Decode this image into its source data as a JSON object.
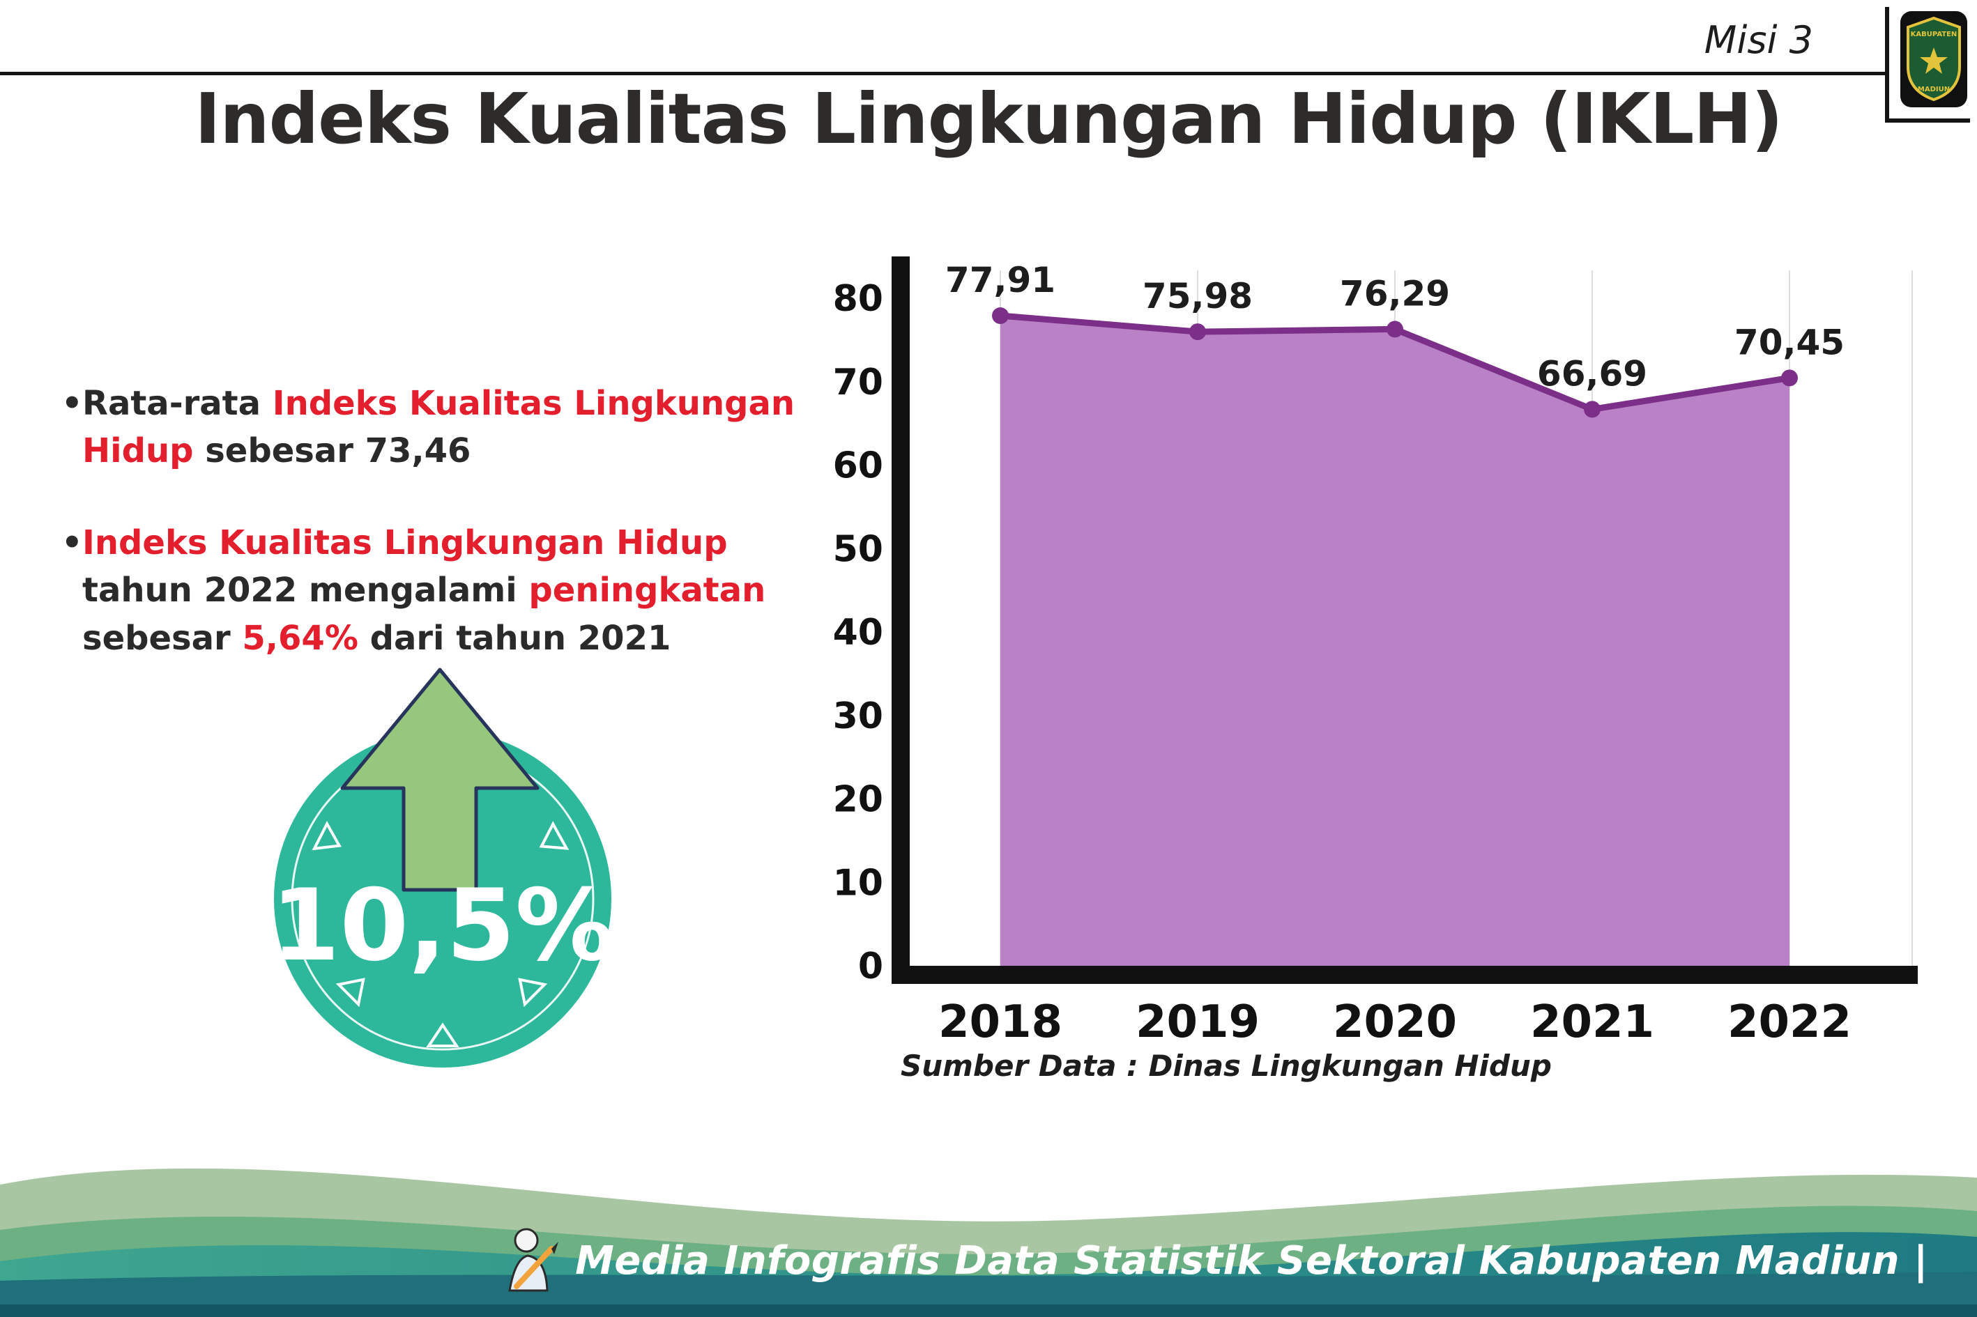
{
  "header": {
    "misi": "Misi 3"
  },
  "title": "Indeks Kualitas Lingkungan Hidup (IKLH)",
  "logo": {
    "top": "KABUPATEN",
    "bottom": "MADIUN"
  },
  "bullets": [
    {
      "segments": [
        {
          "text": "Rata-rata ",
          "red": false
        },
        {
          "text": "Indeks Kualitas Lingkungan Hidup",
          "red": true
        },
        {
          "text": " sebesar 73,46",
          "red": false
        }
      ]
    },
    {
      "segments": [
        {
          "text": "Indeks Kualitas Lingkungan Hidup",
          "red": true
        },
        {
          "text": " tahun 2022 mengalami ",
          "red": false
        },
        {
          "text": "peningkatan",
          "red": true
        },
        {
          "text": " sebesar ",
          "red": false
        },
        {
          "text": "5,64%",
          "red": true
        },
        {
          "text": " dari tahun 2021",
          "red": false
        }
      ]
    }
  ],
  "badge": {
    "value": "10,5%"
  },
  "chart_data": {
    "type": "area",
    "categories": [
      "2018",
      "2019",
      "2020",
      "2021",
      "2022"
    ],
    "values": [
      77.91,
      75.98,
      76.29,
      66.69,
      70.45
    ],
    "value_labels": [
      "77,91",
      "75,98",
      "76,29",
      "66,69",
      "70,45"
    ],
    "title": "",
    "xlabel": "",
    "ylabel": "",
    "ylim": [
      0,
      80
    ],
    "yticks": [
      0,
      10,
      20,
      30,
      40,
      50,
      60,
      70,
      80
    ],
    "grid": "vertical-light",
    "legend": "none",
    "line_color": "#7b2f88",
    "fill_color": "#ba82c6",
    "axis_color": "#111111",
    "source": "Sumber Data : Dinas Lingkungan Hidup"
  },
  "colors": {
    "accent_red": "#e31e2d",
    "badge_teal": "#2db89b",
    "arrow_green": "#97c77d",
    "footer_dark": "#20707b"
  },
  "footer": {
    "text": "Media Infografis Data Statistik Sektoral Kabupaten Madiun |"
  }
}
